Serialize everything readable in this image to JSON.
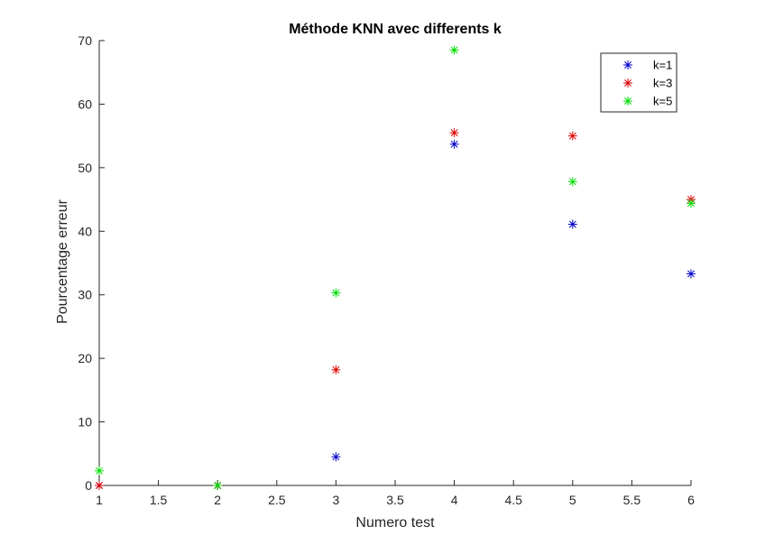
{
  "chart_data": {
    "type": "scatter",
    "title": "Méthode KNN avec differents k",
    "xlabel": "Numero test",
    "ylabel": "Pourcentage erreur",
    "xlim": [
      1,
      6
    ],
    "ylim": [
      0,
      70
    ],
    "xticks": [
      "1",
      "1.5",
      "2",
      "2.5",
      "3",
      "3.5",
      "4",
      "4.5",
      "5",
      "5.5",
      "6"
    ],
    "yticks": [
      "0",
      "10",
      "20",
      "30",
      "40",
      "50",
      "60",
      "70"
    ],
    "grid": false,
    "marker": "asterisk",
    "legend_position": "top-right",
    "x": [
      1,
      2,
      3,
      4,
      5,
      6
    ],
    "series": [
      {
        "name": "k=1",
        "color": "#0000cc",
        "values": [
          0,
          0,
          4.5,
          53.7,
          41.1,
          33.3
        ]
      },
      {
        "name": "k=3",
        "color": "#dd0000",
        "values": [
          0,
          0,
          18.2,
          55.5,
          55.0,
          45.0
        ]
      },
      {
        "name": "k=5",
        "color": "#00dd00",
        "values": [
          2.3,
          0,
          30.3,
          68.5,
          47.8,
          44.4
        ]
      }
    ]
  }
}
